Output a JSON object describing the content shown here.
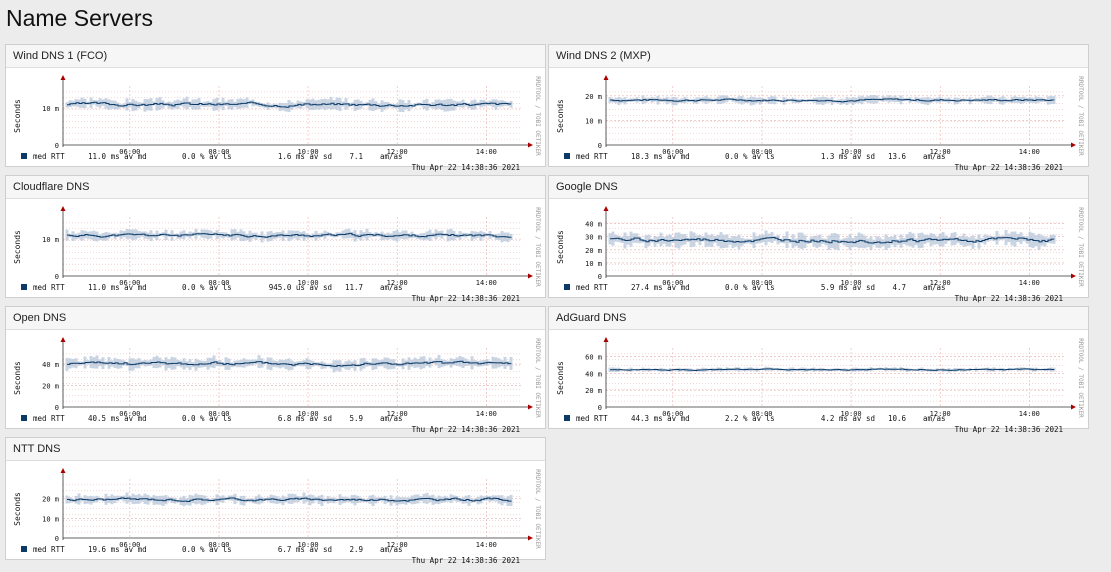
{
  "page": {
    "title": "Name Servers"
  },
  "common": {
    "y_axis_label": "Seconds",
    "legend_metric": "med RTT",
    "unit_avg": "ms av md",
    "unit_loss": "% av ls",
    "unit_sd_ms": "ms av sd",
    "unit_sd_us": "us av sd",
    "unit_ratio": "am/as",
    "timestamp": "Thu Apr 22 14:38:36 2021",
    "watermark": "RRDTOOL / TOBI OETIKER",
    "x_ticks": [
      "06:00",
      "08:00",
      "10:00",
      "12:00",
      "14:00"
    ],
    "colors": {
      "line": "#0b3a66",
      "band": "#b8c7db",
      "grid": "#e8b0b0",
      "axis": "#333333",
      "arrow": "#aa0000"
    }
  },
  "panels": [
    {
      "title": "Wind DNS 1 (FCO)",
      "y_ticks": [
        "10 m",
        "0"
      ],
      "ylim": [
        0,
        16
      ],
      "base": 11.0,
      "noise": 1.0,
      "seed": 3,
      "stats": {
        "avg": "11.0",
        "loss": "0.0",
        "sd": "1.6",
        "sd_unit": "ms av sd",
        "ratio": "7.1"
      }
    },
    {
      "title": "Wind DNS 2 (MXP)",
      "y_ticks": [
        "20 m",
        "10 m",
        "0"
      ],
      "ylim": [
        0,
        24
      ],
      "base": 18.3,
      "noise": 1.0,
      "seed": 7,
      "stats": {
        "avg": "18.3",
        "loss": "0.0",
        "sd": "1.3",
        "sd_unit": "ms av sd",
        "ratio": "13.6"
      }
    },
    {
      "title": "Cloudflare DNS",
      "y_ticks": [
        "10 m",
        "0"
      ],
      "ylim": [
        0,
        16
      ],
      "base": 11.0,
      "noise": 0.9,
      "seed": 11,
      "stats": {
        "avg": "11.0",
        "loss": "0.0",
        "sd": "945.0",
        "sd_unit": "us av sd",
        "ratio": "11.7"
      }
    },
    {
      "title": "Google DNS",
      "y_ticks": [
        "40 m",
        "30 m",
        "20 m",
        "10 m",
        "0"
      ],
      "ylim": [
        0,
        45
      ],
      "base": 27.4,
      "noise": 3.5,
      "seed": 19,
      "stats": {
        "avg": "27.4",
        "loss": "0.0",
        "sd": "5.9",
        "sd_unit": "ms av sd",
        "ratio": "4.7"
      }
    },
    {
      "title": "Open DNS",
      "y_ticks": [
        "40 m",
        "20 m",
        "0"
      ],
      "ylim": [
        0,
        55
      ],
      "base": 40.5,
      "noise": 3.5,
      "seed": 23,
      "stats": {
        "avg": "40.5",
        "loss": "0.0",
        "sd": "6.8",
        "sd_unit": "ms av sd",
        "ratio": "5.9"
      }
    },
    {
      "title": "AdGuard DNS",
      "y_ticks": [
        "60 m",
        "40 m",
        "20 m",
        "0"
      ],
      "ylim": [
        0,
        70
      ],
      "base": 44.3,
      "noise": 1.5,
      "seed": 29,
      "stats": {
        "avg": "44.3",
        "loss": "2.2",
        "sd": "4.2",
        "sd_unit": "ms av sd",
        "ratio": "10.6"
      }
    },
    {
      "title": "NTT DNS",
      "y_ticks": [
        "20 m",
        "10 m",
        "0"
      ],
      "ylim": [
        0,
        30
      ],
      "base": 19.6,
      "noise": 1.6,
      "seed": 31,
      "stats": {
        "avg": "19.6",
        "loss": "0.0",
        "sd": "6.7",
        "sd_unit": "ms av sd",
        "ratio": "2.9"
      }
    }
  ]
}
